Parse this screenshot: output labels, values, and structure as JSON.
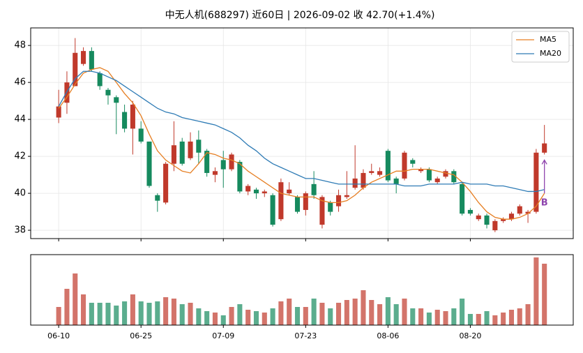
{
  "chart_data": [
    {
      "type": "candlestick",
      "title": "中无人机(688297) 近60日  |  2026-09-02 收 42.70(+1.4%)",
      "open": [
        44.1,
        44.9,
        45.8,
        47.0,
        47.7,
        46.5,
        45.6,
        45.2,
        44.4,
        43.5,
        43.5,
        42.8,
        39.9,
        39.5,
        41.6,
        42.8,
        41.9,
        42.9,
        42.3,
        41.0,
        41.8,
        41.3,
        41.7,
        40.1,
        40.2,
        40.0,
        39.9,
        38.6,
        40.0,
        39.8,
        39.1,
        40.5,
        38.3,
        39.5,
        39.3,
        39.8,
        40.3,
        40.3,
        41.1,
        41.0,
        42.3,
        40.8,
        40.8,
        41.8,
        41.2,
        41.3,
        40.6,
        40.9,
        41.2,
        40.5,
        39.1,
        38.6,
        38.8,
        38.0,
        38.5,
        38.6,
        38.9,
        38.9,
        39.0,
        42.2
      ],
      "high": [
        45.6,
        46.6,
        48.4,
        47.9,
        47.9,
        46.6,
        45.7,
        45.3,
        44.8,
        45.0,
        43.9,
        42.8,
        40.0,
        41.7,
        43.9,
        43.0,
        43.3,
        43.4,
        42.4,
        41.4,
        42.3,
        42.2,
        41.8,
        40.5,
        40.3,
        40.2,
        40.0,
        40.8,
        40.6,
        39.9,
        40.1,
        41.2,
        39.9,
        39.6,
        40.2,
        41.2,
        42.6,
        41.3,
        41.6,
        41.4,
        42.4,
        40.9,
        42.3,
        41.9,
        41.4,
        41.4,
        40.9,
        41.3,
        41.3,
        40.6,
        39.2,
        38.9,
        38.9,
        38.6,
        38.7,
        39.0,
        39.4,
        39.1,
        42.4,
        43.7
      ],
      "low": [
        43.8,
        44.3,
        45.8,
        46.9,
        46.6,
        45.6,
        44.8,
        43.2,
        43.3,
        42.1,
        42.7,
        40.3,
        39.0,
        39.4,
        41.2,
        41.5,
        41.8,
        41.6,
        40.9,
        40.6,
        40.3,
        41.2,
        40.0,
        39.9,
        39.7,
        39.8,
        38.2,
        38.5,
        39.9,
        38.9,
        38.8,
        39.7,
        38.1,
        38.8,
        39.0,
        39.7,
        40.2,
        40.2,
        41.0,
        40.9,
        40.6,
        40.0,
        40.7,
        41.4,
        41.1,
        40.6,
        40.5,
        40.8,
        40.5,
        38.8,
        38.8,
        38.5,
        38.1,
        37.9,
        38.4,
        38.5,
        38.8,
        38.4,
        38.9,
        42.1
      ],
      "close": [
        44.7,
        46.0,
        47.6,
        47.7,
        46.7,
        45.8,
        45.3,
        44.9,
        43.5,
        44.8,
        42.8,
        40.4,
        39.6,
        41.6,
        42.6,
        41.6,
        42.8,
        42.2,
        41.1,
        41.2,
        41.3,
        42.1,
        40.1,
        40.4,
        40.0,
        40.1,
        38.3,
        40.6,
        40.2,
        39.0,
        40.0,
        39.9,
        39.8,
        39.0,
        39.9,
        39.9,
        40.8,
        41.1,
        41.2,
        41.2,
        40.7,
        40.5,
        42.2,
        41.6,
        41.3,
        40.7,
        40.8,
        41.2,
        40.6,
        38.9,
        38.9,
        38.8,
        38.3,
        38.5,
        38.6,
        38.9,
        39.3,
        39.0,
        42.2,
        42.7
      ],
      "up_color": "#c0392b",
      "down_color": "#168a5e",
      "series": [
        {
          "name": "MA5",
          "color": "#e67e22",
          "values": [
            44.6,
            45.2,
            45.9,
            46.5,
            46.7,
            46.8,
            46.6,
            46.0,
            45.4,
            44.9,
            44.2,
            43.2,
            42.3,
            41.8,
            41.5,
            41.2,
            41.1,
            41.6,
            42.2,
            42.1,
            41.9,
            41.8,
            41.6,
            41.2,
            40.9,
            40.6,
            40.3,
            40.0,
            39.9,
            39.8,
            39.8,
            39.8,
            39.6,
            39.5,
            39.5,
            39.6,
            39.9,
            40.3,
            40.6,
            40.8,
            41.0,
            41.2,
            41.2,
            41.3,
            41.3,
            41.3,
            41.2,
            41.1,
            41.0,
            40.6,
            40.1,
            39.5,
            39.0,
            38.7,
            38.6,
            38.6,
            38.7,
            38.9,
            39.3,
            40.0
          ]
        },
        {
          "name": "MA20",
          "color": "#2e7bb5",
          "values": [
            44.7,
            45.5,
            46.2,
            46.6,
            46.6,
            46.5,
            46.3,
            46.1,
            45.8,
            45.5,
            45.2,
            44.9,
            44.6,
            44.4,
            44.3,
            44.1,
            44.0,
            43.9,
            43.8,
            43.7,
            43.5,
            43.3,
            43.0,
            42.6,
            42.3,
            41.9,
            41.6,
            41.4,
            41.2,
            41.0,
            40.8,
            40.8,
            40.7,
            40.6,
            40.5,
            40.5,
            40.5,
            40.5,
            40.5,
            40.5,
            40.5,
            40.5,
            40.4,
            40.4,
            40.4,
            40.5,
            40.5,
            40.5,
            40.5,
            40.6,
            40.5,
            40.5,
            40.5,
            40.4,
            40.4,
            40.3,
            40.2,
            40.1,
            40.1,
            40.2
          ]
        }
      ],
      "annotations": [
        {
          "text": "B",
          "color": "#8e44ad"
        }
      ],
      "xlim": [
        -3.4,
        62.5
      ],
      "ylim": [
        37.55,
        48.95
      ],
      "yticks": [
        38,
        40,
        42,
        44,
        46,
        48
      ],
      "grid": true,
      "legend": "upper right"
    },
    {
      "type": "bar",
      "categories": [
        "06-10",
        null,
        null,
        null,
        null,
        null,
        null,
        null,
        null,
        null,
        "06-25",
        null,
        null,
        null,
        null,
        null,
        null,
        null,
        null,
        null,
        "07-09",
        null,
        null,
        null,
        null,
        null,
        null,
        null,
        null,
        null,
        "07-23",
        null,
        null,
        null,
        null,
        null,
        null,
        null,
        null,
        null,
        "08-06",
        null,
        null,
        null,
        null,
        null,
        null,
        null,
        null,
        null,
        "08-20",
        null,
        null,
        null,
        null,
        null,
        null,
        null,
        null,
        null
      ],
      "values": [
        26,
        52,
        74,
        44,
        32,
        32,
        32,
        28,
        34,
        44,
        34,
        32,
        34,
        40,
        38,
        30,
        32,
        24,
        20,
        18,
        14,
        26,
        30,
        22,
        20,
        18,
        24,
        34,
        38,
        26,
        26,
        38,
        32,
        24,
        32,
        36,
        38,
        50,
        36,
        30,
        40,
        30,
        38,
        24,
        24,
        18,
        22,
        20,
        24,
        38,
        16,
        16,
        20,
        14,
        18,
        22,
        24,
        30,
        97,
        88
      ],
      "xlim": [
        -3.4,
        62.5
      ],
      "ylim": [
        0,
        101
      ]
    }
  ]
}
